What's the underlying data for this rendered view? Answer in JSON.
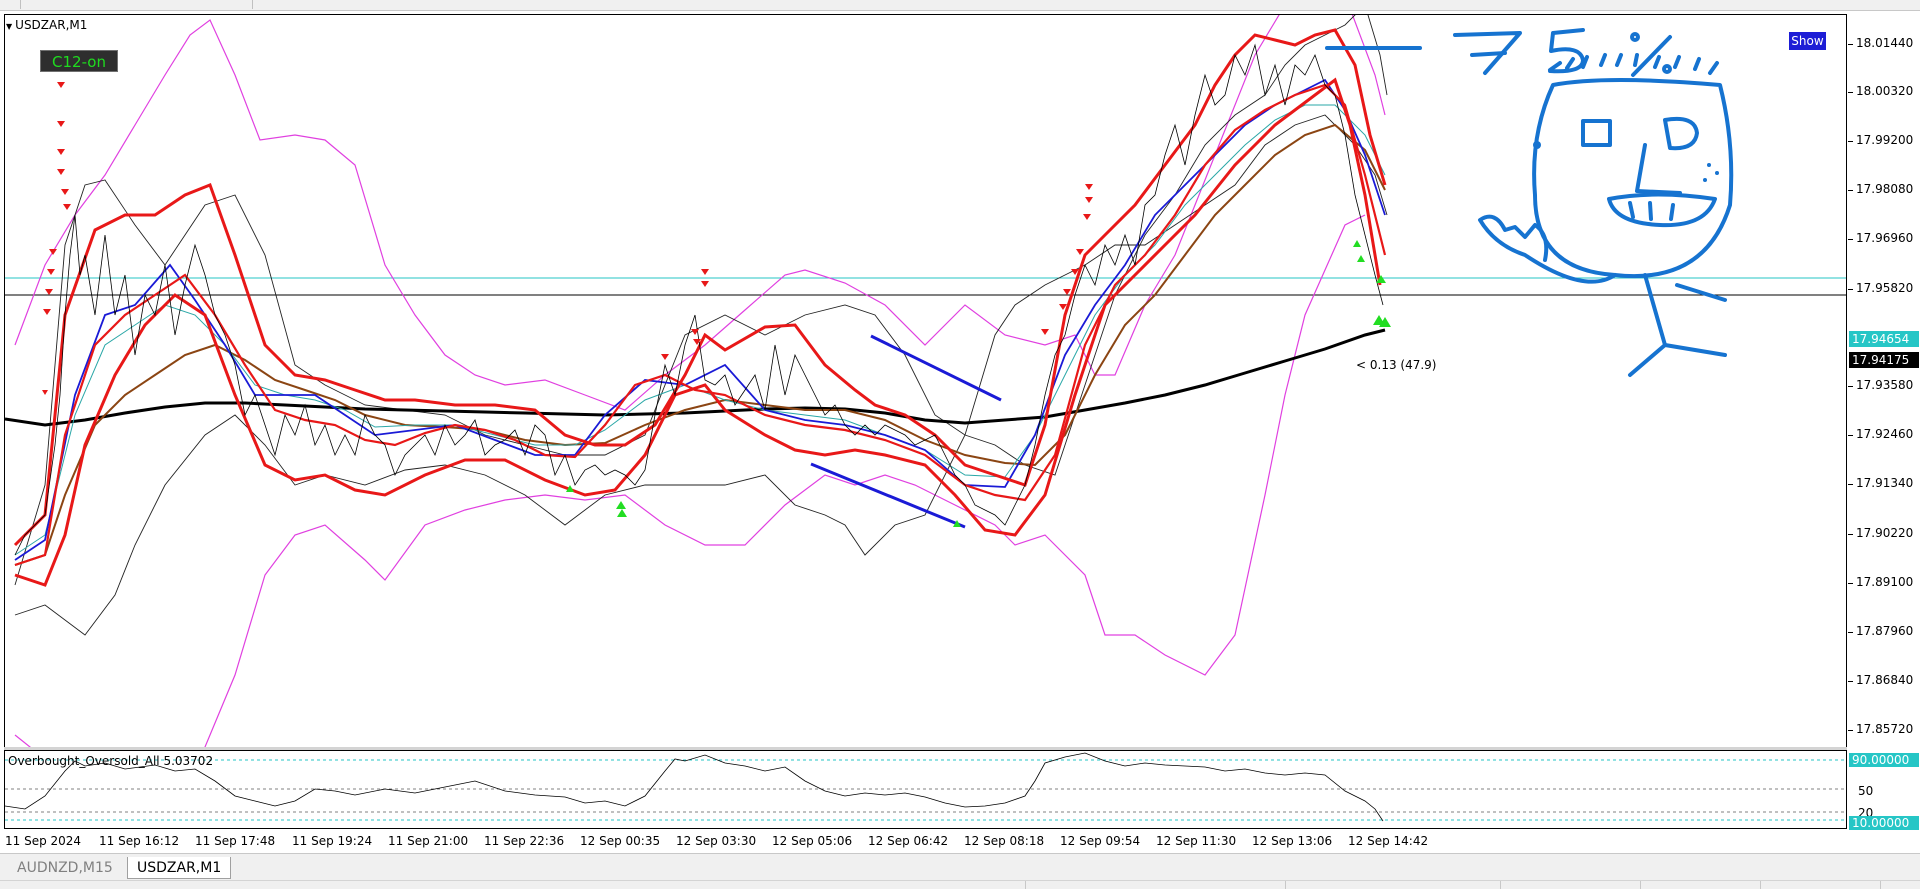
{
  "chart": {
    "symbol": "USDZAR,M1",
    "c12_label": "C12-on",
    "show_label": "Show",
    "annotation": "< 0.13 (47.9)",
    "price_levels": [
      "18.01440",
      "18.00320",
      "17.99200",
      "17.98080",
      "17.96960",
      "17.95820",
      "17.94654",
      "17.94175",
      "17.93580",
      "17.92460",
      "17.91340",
      "17.90220",
      "17.89100",
      "17.87960",
      "17.86840",
      "17.85720"
    ],
    "current_price_teal": "17.94654",
    "current_price_black": "17.94175",
    "drawing_text": "— 7 5 %"
  },
  "indicator": {
    "title": "Overbought_Oversold_All 5.03702",
    "level_high": "90.00000",
    "level_mid": "50",
    "level_low_label": "20",
    "level_low": "10.00000"
  },
  "time_axis": [
    "11 Sep 2024",
    "11 Sep 16:12",
    "11 Sep 17:48",
    "11 Sep 19:24",
    "11 Sep 21:00",
    "11 Sep 22:36",
    "12 Sep 00:35",
    "12 Sep 03:30",
    "12 Sep 05:06",
    "12 Sep 06:42",
    "12 Sep 08:18",
    "12 Sep 09:54",
    "12 Sep 11:30",
    "12 Sep 13:06",
    "12 Sep 14:42"
  ],
  "tabs": [
    "AUDNZD,M15",
    "USDZAR,M1"
  ],
  "colors": {
    "band_outer": "#e040e0",
    "band_red": "#e81818",
    "ma_blue": "#1a1ad6",
    "ma_brown": "#8b4513",
    "ma_black": "#000000",
    "price_teal": "#26c6c6",
    "drawing_blue": "#1673d0",
    "arrow_up": "#22dd22",
    "arrow_down": "#e81818"
  }
}
